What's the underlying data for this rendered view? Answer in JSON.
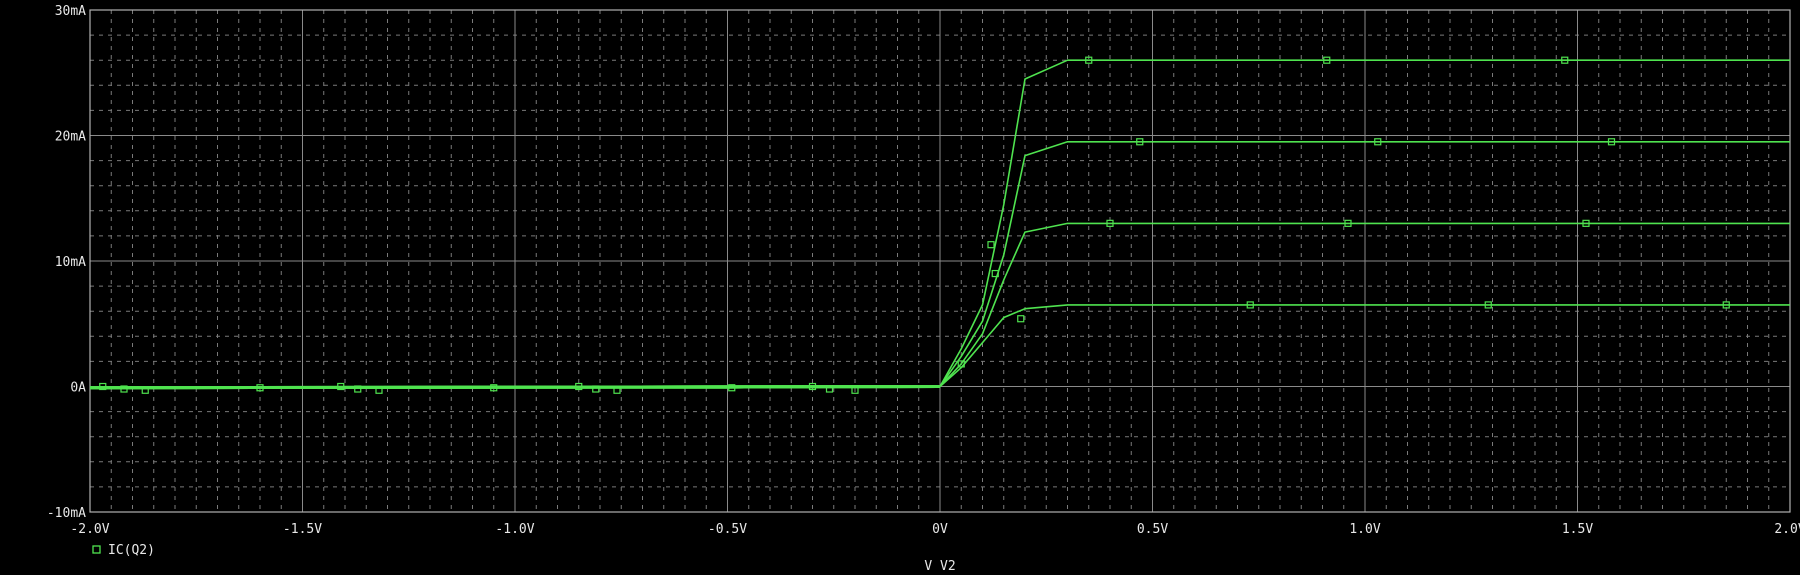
{
  "chart_data": {
    "type": "line",
    "title": "",
    "xlabel": "V_V2",
    "ylabel": "",
    "xlim": [
      -2.0,
      2.0
    ],
    "ylim": [
      -10,
      30
    ],
    "x_unit": "V",
    "y_unit": "mA",
    "grid": true,
    "legend_position": "bottom-left",
    "x_ticks": [
      -2.0,
      -1.5,
      -1.0,
      -0.5,
      0.0,
      0.5,
      1.0,
      1.5,
      2.0
    ],
    "x_tick_labels": [
      "-2.0V",
      "-1.5V",
      "-1.0V",
      "-0.5V",
      "0V",
      "0.5V",
      "1.0V",
      "1.5V",
      "2.0V"
    ],
    "y_ticks": [
      -10,
      0,
      10,
      20,
      30
    ],
    "y_tick_labels": [
      "-10mA",
      "0A",
      "10mA",
      "20mA",
      "30mA"
    ],
    "legend": [
      {
        "name": "IC(Q2)",
        "marker": "square"
      }
    ],
    "series": [
      {
        "name": "IC(Q2)",
        "x": [
          -2.0,
          -1.5,
          -1.0,
          -0.5,
          0.0,
          0.05,
          0.1,
          0.15,
          0.2,
          0.3,
          0.5,
          1.0,
          1.5,
          2.0
        ],
        "y": [
          -0.1,
          -0.1,
          -0.1,
          -0.1,
          0.0,
          1.5,
          3.5,
          5.5,
          6.2,
          6.5,
          6.5,
          6.5,
          6.5,
          6.5
        ],
        "markers_x": [
          -1.97,
          -1.41,
          -0.85,
          -0.3,
          0.19,
          0.73,
          1.29,
          1.85
        ],
        "markers_y": [
          0.0,
          0.0,
          0.0,
          0.0,
          5.4,
          6.5,
          6.5,
          6.5
        ]
      },
      {
        "name": "IC(Q2)",
        "x": [
          -2.0,
          -1.5,
          -1.0,
          -0.5,
          0.0,
          0.05,
          0.1,
          0.15,
          0.2,
          0.3,
          0.5,
          1.0,
          1.5,
          2.0
        ],
        "y": [
          -0.1,
          -0.1,
          -0.1,
          -0.1,
          0.0,
          1.8,
          4.2,
          8.5,
          12.3,
          13.0,
          13.0,
          13.0,
          13.0,
          13.0
        ],
        "markers_x": [
          -1.92,
          -1.37,
          -0.81,
          -0.26,
          0.05,
          0.4,
          0.96,
          1.52
        ],
        "markers_y": [
          -0.2,
          -0.2,
          -0.2,
          -0.2,
          1.8,
          13.0,
          13.0,
          13.0
        ]
      },
      {
        "name": "IC(Q2)",
        "x": [
          -2.0,
          -1.5,
          -1.0,
          -0.5,
          0.0,
          0.05,
          0.1,
          0.15,
          0.2,
          0.3,
          0.5,
          1.0,
          1.5,
          2.0
        ],
        "y": [
          -0.1,
          -0.1,
          -0.1,
          -0.1,
          0.0,
          2.4,
          5.2,
          10.5,
          18.4,
          19.5,
          19.5,
          19.5,
          19.5,
          19.5
        ],
        "markers_x": [
          -1.87,
          -1.32,
          -0.76,
          -0.2,
          0.13,
          0.47,
          1.03,
          1.58
        ],
        "markers_y": [
          -0.3,
          -0.3,
          -0.3,
          -0.3,
          9.0,
          19.5,
          19.5,
          19.5
        ]
      },
      {
        "name": "IC(Q2)",
        "x": [
          -2.0,
          -1.5,
          -1.0,
          -0.5,
          0.0,
          0.05,
          0.1,
          0.15,
          0.2,
          0.3,
          0.5,
          1.0,
          1.5,
          2.0
        ],
        "y": [
          -0.1,
          -0.1,
          -0.1,
          -0.1,
          0.0,
          3.0,
          6.5,
          14.5,
          24.5,
          26.0,
          26.0,
          26.0,
          26.0,
          26.0
        ],
        "markers_x": [
          -1.6,
          -1.05,
          -0.49,
          0.12,
          0.35,
          0.91,
          1.47
        ],
        "markers_y": [
          -0.1,
          -0.1,
          -0.1,
          11.3,
          26.0,
          26.0,
          26.0
        ]
      }
    ],
    "colors": {
      "background": "#000000",
      "trace": "#4fe34f",
      "grid_major": "#8a8a8a",
      "grid_minor": "#7a7a7a",
      "text": "#e8e8e8"
    }
  }
}
